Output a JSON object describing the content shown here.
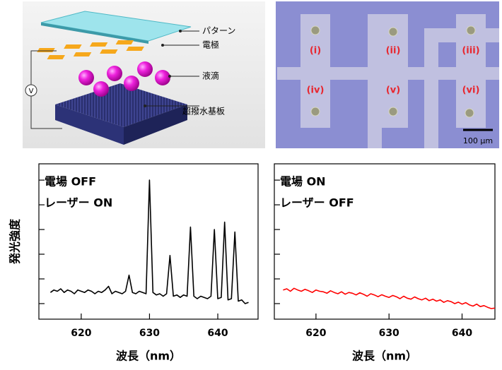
{
  "diagram": {
    "labels": [
      "パターン",
      "電極",
      "液滴",
      "超撥水基板"
    ],
    "voltage": "V"
  },
  "micrograph": {
    "labels": [
      "(i)",
      "(ii)",
      "(iii)",
      "(iv)",
      "(v)",
      "(vi)"
    ],
    "scale_bar": "100 μm"
  },
  "chart_data": [
    {
      "type": "line",
      "annotations": [
        "電場 OFF",
        "レーザー ON"
      ],
      "xlabel": "波長（nm）",
      "ylabel": "発光強度",
      "x": [
        615.5,
        616,
        616.5,
        617,
        617.5,
        618,
        618.5,
        619,
        619.5,
        620,
        620.5,
        621,
        621.5,
        622,
        622.5,
        623,
        623.5,
        624,
        624.5,
        625,
        625.5,
        626,
        626.5,
        627,
        627.5,
        628,
        628.5,
        629,
        629.5,
        630,
        630.5,
        631,
        631.5,
        632,
        632.5,
        633,
        633.5,
        634,
        634.5,
        635,
        635.5,
        636,
        636.5,
        637,
        637.5,
        638,
        638.5,
        639,
        639.5,
        640,
        640.5,
        641,
        641.5,
        642,
        642.5,
        643,
        643.5,
        644,
        644.5
      ],
      "values": [
        0.45,
        0.55,
        0.5,
        0.6,
        0.45,
        0.55,
        0.5,
        0.4,
        0.55,
        0.5,
        0.45,
        0.55,
        0.5,
        0.4,
        0.5,
        0.45,
        0.55,
        0.7,
        0.4,
        0.5,
        0.45,
        0.4,
        0.5,
        1.15,
        0.45,
        0.4,
        0.5,
        0.45,
        0.4,
        5.0,
        0.45,
        0.35,
        0.4,
        0.3,
        0.4,
        1.95,
        0.3,
        0.35,
        0.25,
        0.35,
        0.3,
        3.1,
        0.3,
        0.2,
        0.3,
        0.25,
        0.2,
        0.3,
        3.0,
        0.2,
        0.25,
        3.3,
        0.15,
        0.2,
        2.9,
        0.1,
        0.15,
        0,
        0.05
      ],
      "color": "#000000",
      "xlim": [
        613.8,
        645.9
      ],
      "xticks": [
        620,
        630,
        640
      ],
      "ylim": [
        -0.63,
        5.66
      ],
      "yticks": [
        0,
        1,
        2,
        3,
        4,
        5
      ]
    },
    {
      "type": "line",
      "annotations": [
        "電場 ON",
        "レーザー OFF"
      ],
      "xlabel": "波長（nm）",
      "x": [
        615.5,
        616,
        616.5,
        617,
        617.5,
        618,
        618.5,
        619,
        619.5,
        620,
        620.5,
        621,
        621.5,
        622,
        622.5,
        623,
        623.5,
        624,
        624.5,
        625,
        625.5,
        626,
        626.5,
        627,
        627.5,
        628,
        628.5,
        629,
        629.5,
        630,
        630.5,
        631,
        631.5,
        632,
        632.5,
        633,
        633.5,
        634,
        634.5,
        635,
        635.5,
        636,
        636.5,
        637,
        637.5,
        638,
        638.5,
        639,
        639.5,
        640,
        640.5,
        641,
        641.5,
        642,
        642.5,
        643,
        643.5,
        644,
        644.5
      ],
      "values": [
        0.55,
        0.6,
        0.5,
        0.62,
        0.55,
        0.5,
        0.58,
        0.52,
        0.45,
        0.55,
        0.5,
        0.48,
        0.42,
        0.52,
        0.45,
        0.4,
        0.48,
        0.38,
        0.45,
        0.42,
        0.35,
        0.44,
        0.38,
        0.3,
        0.4,
        0.35,
        0.28,
        0.36,
        0.3,
        0.25,
        0.33,
        0.28,
        0.2,
        0.3,
        0.22,
        0.18,
        0.27,
        0.2,
        0.15,
        0.22,
        0.12,
        0.18,
        0.1,
        0.15,
        0.05,
        0.12,
        0.08,
        0,
        0.06,
        -0.02,
        0.04,
        -0.05,
        -0.1,
        -0.02,
        -0.12,
        -0.08,
        -0.15,
        -0.2,
        -0.18
      ],
      "color": "#ff0000",
      "xlim": [
        614.3,
        644.5
      ],
      "xticks": [
        620,
        630,
        640
      ],
      "ylim": [
        -0.63,
        5.66
      ],
      "yticks": [
        0,
        1,
        2,
        3,
        4,
        5
      ]
    }
  ]
}
